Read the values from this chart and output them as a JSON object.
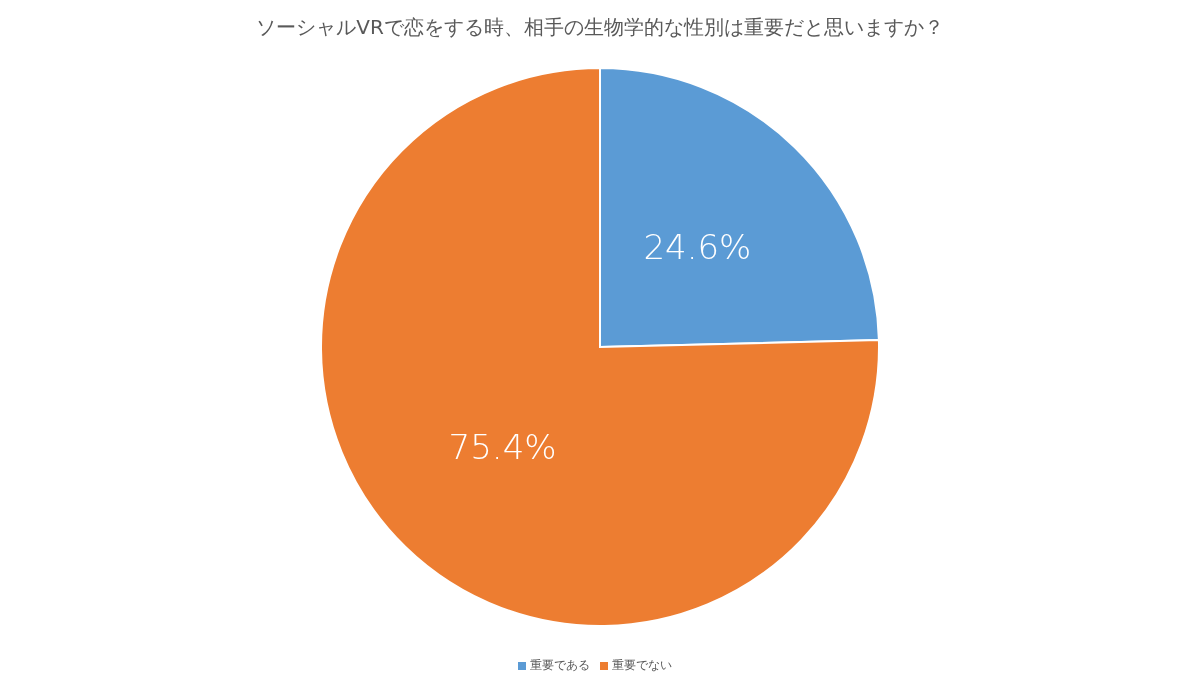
{
  "chart_data": {
    "type": "pie",
    "title": "ソーシャルVRで恋をする時、相手の生物学的な性別は重要だと思いますか？",
    "categories": [
      "重要である",
      "重要でない"
    ],
    "values": [
      24.6,
      75.4
    ],
    "colors": [
      "#5b9bd5",
      "#ed7d31"
    ],
    "value_labels": [
      "24.6%",
      "75.4%"
    ],
    "legend": "bottom"
  }
}
